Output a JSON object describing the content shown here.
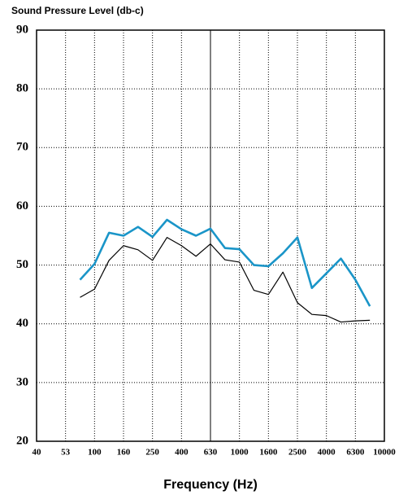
{
  "chart_data": {
    "type": "line",
    "title": "Sound Pressure Level (db-c)",
    "x_label": "Frequency (Hz)",
    "categories": [
      "40",
      null,
      "53",
      null,
      "100",
      null,
      "160",
      null,
      "250",
      null,
      "400",
      null,
      "630",
      null,
      "1000",
      null,
      "1600",
      null,
      "2500",
      null,
      "4000",
      null,
      "6300",
      null,
      "10000"
    ],
    "series": [
      {
        "color": "#1a95c8",
        "values": [
          null,
          null,
          null,
          47.5,
          50.2,
          55.5,
          55.0,
          56.5,
          54.8,
          57.7,
          56.1,
          55.0,
          56.2,
          52.9,
          52.7,
          50.0,
          49.8,
          52.0,
          54.7,
          46.1,
          48.6,
          51.1,
          47.5,
          43.0,
          null
        ]
      },
      {
        "color": "#000000",
        "values": [
          null,
          null,
          null,
          44.5,
          45.9,
          50.8,
          53.3,
          52.6,
          50.8,
          54.7,
          53.3,
          51.5,
          53.6,
          50.9,
          50.5,
          45.7,
          45.0,
          48.8,
          43.6,
          41.6,
          41.4,
          40.3,
          40.5,
          40.6,
          null
        ]
      }
    ],
    "ylim": [
      20,
      90
    ],
    "yticks": [
      20,
      30,
      40,
      50,
      60,
      70,
      80,
      90
    ],
    "grid": true
  }
}
